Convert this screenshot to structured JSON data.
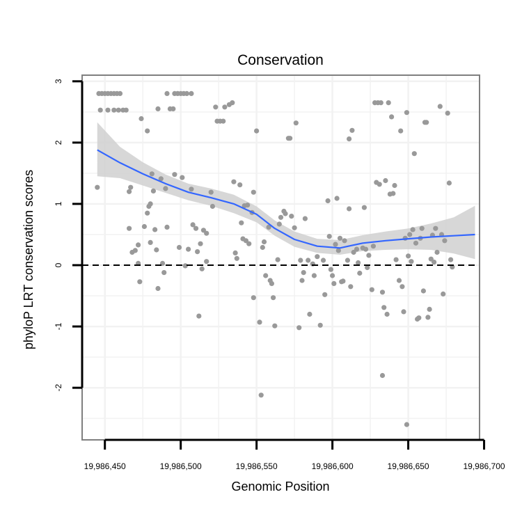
{
  "chart_data": {
    "type": "scatter",
    "title": "Conservation",
    "xlabel": "Genomic Position",
    "ylabel": "phyloP LRT conservation scores",
    "xlim": [
      19986435,
      19986697
    ],
    "ylim": [
      -2.85,
      3.1
    ],
    "x_ticks": [
      19986450,
      19986500,
      19986550,
      19986600,
      19986650,
      19986700
    ],
    "x_tick_labels": [
      "19,986,450",
      "19,986,500",
      "19,986,550",
      "19,986,600",
      "19,986,650",
      "19,986,700"
    ],
    "y_ticks": [
      -2,
      -1,
      0,
      1,
      2,
      3
    ],
    "y_tick_labels": [
      "-2",
      "-1",
      "0",
      "1",
      "2",
      "3"
    ],
    "grid": true,
    "reference_line": {
      "y": 0,
      "style": "dashed"
    },
    "colors": {
      "points": "#999999",
      "smooth": "#3366FF",
      "ribbon": "#D0D0D0",
      "panel_border": "#7F7F7F",
      "grid": "#F2F2F2"
    },
    "series": [
      {
        "name": "scores",
        "points": [
          [
            19986446,
            2.8
          ],
          [
            19986448,
            2.8
          ],
          [
            19986450,
            2.8
          ],
          [
            19986452,
            2.8
          ],
          [
            19986454,
            2.8
          ],
          [
            19986456,
            2.8
          ],
          [
            19986458,
            2.8
          ],
          [
            19986460,
            2.8
          ],
          [
            19986447,
            2.53
          ],
          [
            19986452,
            2.53
          ],
          [
            19986456,
            2.53
          ],
          [
            19986459,
            2.53
          ],
          [
            19986462,
            2.53
          ],
          [
            19986464,
            2.53
          ],
          [
            19986445,
            1.27
          ],
          [
            19986466,
            1.2
          ],
          [
            19986467,
            1.27
          ],
          [
            19986466,
            0.6
          ],
          [
            19986468,
            0.21
          ],
          [
            19986470,
            0.24
          ],
          [
            19986472,
            0.33
          ],
          [
            19986472,
            0.03
          ],
          [
            19986473,
            -0.27
          ],
          [
            19986474,
            2.39
          ],
          [
            19986478,
            2.19
          ],
          [
            19986476,
            0.63
          ],
          [
            19986478,
            0.85
          ],
          [
            19986479,
            0.96
          ],
          [
            19986480,
            1.0
          ],
          [
            19986481,
            1.49
          ],
          [
            19986482,
            1.21
          ],
          [
            19986483,
            0.58
          ],
          [
            19986484,
            0.25
          ],
          [
            19986485,
            -0.38
          ],
          [
            19986480,
            0.37
          ],
          [
            19986485,
            2.55
          ],
          [
            19986487,
            1.41
          ],
          [
            19986488,
            0.03
          ],
          [
            19986489,
            -0.12
          ],
          [
            19986490,
            1.25
          ],
          [
            19986491,
            0.62
          ],
          [
            19986491,
            2.8
          ],
          [
            19986493,
            2.55
          ],
          [
            19986495,
            2.55
          ],
          [
            19986496,
            2.8
          ],
          [
            19986498,
            2.8
          ],
          [
            19986500,
            2.8
          ],
          [
            19986502,
            2.8
          ],
          [
            19986504,
            2.8
          ],
          [
            19986507,
            2.8
          ],
          [
            19986496,
            1.48
          ],
          [
            19986499,
            0.29
          ],
          [
            19986501,
            1.43
          ],
          [
            19986503,
            -0.01
          ],
          [
            19986505,
            0.26
          ],
          [
            19986507,
            1.24
          ],
          [
            19986508,
            0.66
          ],
          [
            19986510,
            0.6
          ],
          [
            19986511,
            0.22
          ],
          [
            19986512,
            -0.83
          ],
          [
            19986513,
            0.35
          ],
          [
            19986514,
            -0.06
          ],
          [
            19986515,
            0.57
          ],
          [
            19986517,
            0.52
          ],
          [
            19986517,
            0.06
          ],
          [
            19986520,
            1.19
          ],
          [
            19986521,
            0.96
          ],
          [
            19986523,
            2.58
          ],
          [
            19986524,
            2.35
          ],
          [
            19986526,
            2.35
          ],
          [
            19986528,
            2.35
          ],
          [
            19986529,
            2.58
          ],
          [
            19986532,
            2.62
          ],
          [
            19986534,
            2.65
          ],
          [
            19986535,
            1.36
          ],
          [
            19986536,
            0.2
          ],
          [
            19986537,
            0.11
          ],
          [
            19986539,
            1.31
          ],
          [
            19986540,
            0.69
          ],
          [
            19986541,
            0.43
          ],
          [
            19986542,
            0.97
          ],
          [
            19986543,
            0.4
          ],
          [
            19986544,
            0.98
          ],
          [
            19986545,
            0.35
          ],
          [
            19986547,
            0.86
          ],
          [
            19986548,
            1.19
          ],
          [
            19986548,
            -0.53
          ],
          [
            19986550,
            2.19
          ],
          [
            19986552,
            -0.93
          ],
          [
            19986553,
            -2.12
          ],
          [
            19986554,
            0.29
          ],
          [
            19986555,
            0.38
          ],
          [
            19986556,
            -0.17
          ],
          [
            19986558,
            0.62
          ],
          [
            19986559,
            -0.25
          ],
          [
            19986560,
            -0.3
          ],
          [
            19986561,
            -0.53
          ],
          [
            19986562,
            -0.99
          ],
          [
            19986564,
            0.09
          ],
          [
            19986565,
            0.67
          ],
          [
            19986566,
            0.78
          ],
          [
            19986568,
            0.88
          ],
          [
            19986569,
            0.84
          ],
          [
            19986571,
            2.07
          ],
          [
            19986572,
            2.07
          ],
          [
            19986573,
            0.8
          ],
          [
            19986575,
            0.61
          ],
          [
            19986576,
            2.32
          ],
          [
            19986578,
            -1.02
          ],
          [
            19986579,
            0.08
          ],
          [
            19986580,
            -0.25
          ],
          [
            19986581,
            -0.12
          ],
          [
            19986582,
            0.76
          ],
          [
            19986584,
            0.08
          ],
          [
            19986585,
            -0.8
          ],
          [
            19986587,
            0.02
          ],
          [
            19986588,
            -0.17
          ],
          [
            19986590,
            0.14
          ],
          [
            19986592,
            -0.98
          ],
          [
            19986594,
            0.08
          ],
          [
            19986595,
            -0.48
          ],
          [
            19986597,
            1.05
          ],
          [
            19986598,
            0.47
          ],
          [
            19986599,
            -0.07
          ],
          [
            19986600,
            -0.17
          ],
          [
            19986601,
            -0.3
          ],
          [
            19986602,
            0.34
          ],
          [
            19986603,
            1.09
          ],
          [
            19986604,
            0.24
          ],
          [
            19986605,
            0.44
          ],
          [
            19986606,
            -0.27
          ],
          [
            19986607,
            -0.26
          ],
          [
            19986608,
            0.4
          ],
          [
            19986610,
            0.08
          ],
          [
            19986611,
            2.06
          ],
          [
            19986611,
            0.92
          ],
          [
            19986612,
            -0.35
          ],
          [
            19986613,
            2.2
          ],
          [
            19986614,
            0.21
          ],
          [
            19986616,
            0.26
          ],
          [
            19986617,
            0.04
          ],
          [
            19986618,
            -0.13
          ],
          [
            19986620,
            0.28
          ],
          [
            19986621,
            0.94
          ],
          [
            19986622,
            0.26
          ],
          [
            19986623,
            -0.04
          ],
          [
            19986624,
            0.16
          ],
          [
            19986626,
            -0.4
          ],
          [
            19986627,
            0.31
          ],
          [
            19986628,
            2.65
          ],
          [
            19986630,
            2.65
          ],
          [
            19986632,
            2.65
          ],
          [
            19986629,
            1.35
          ],
          [
            19986631,
            1.32
          ],
          [
            19986633,
            -1.8
          ],
          [
            19986633,
            -0.44
          ],
          [
            19986634,
            -0.69
          ],
          [
            19986635,
            1.38
          ],
          [
            19986636,
            -0.8
          ],
          [
            19986637,
            2.65
          ],
          [
            19986638,
            1.16
          ],
          [
            19986639,
            2.42
          ],
          [
            19986640,
            1.17
          ],
          [
            19986641,
            1.3
          ],
          [
            19986642,
            0.09
          ],
          [
            19986644,
            -0.25
          ],
          [
            19986645,
            2.19
          ],
          [
            19986646,
            -0.35
          ],
          [
            19986647,
            -0.76
          ],
          [
            19986648,
            0.44
          ],
          [
            19986649,
            2.49
          ],
          [
            19986649,
            -2.6
          ],
          [
            19986650,
            0.15
          ],
          [
            19986651,
            0.5
          ],
          [
            19986652,
            0.06
          ],
          [
            19986653,
            0.58
          ],
          [
            19986654,
            1.82
          ],
          [
            19986655,
            0.36
          ],
          [
            19986656,
            -0.88
          ],
          [
            19986657,
            -0.86
          ],
          [
            19986658,
            0.44
          ],
          [
            19986659,
            0.6
          ],
          [
            19986660,
            -0.42
          ],
          [
            19986661,
            2.33
          ],
          [
            19986662,
            2.33
          ],
          [
            19986663,
            -0.85
          ],
          [
            19986664,
            -0.72
          ],
          [
            19986665,
            0.1
          ],
          [
            19986666,
            0.49
          ],
          [
            19986667,
            0.05
          ],
          [
            19986668,
            0.6
          ],
          [
            19986669,
            0.21
          ],
          [
            19986671,
            2.59
          ],
          [
            19986672,
            0.5
          ],
          [
            19986673,
            -0.47
          ],
          [
            19986674,
            0.4
          ],
          [
            19986676,
            2.48
          ],
          [
            19986677,
            1.34
          ],
          [
            19986678,
            0.09
          ],
          [
            19986679,
            -0.03
          ]
        ],
        "smooth": [
          [
            19986445,
            1.88,
            1.45,
            2.33
          ],
          [
            19986460,
            1.67,
            1.42,
            1.93
          ],
          [
            19986475,
            1.49,
            1.3,
            1.68
          ],
          [
            19986490,
            1.33,
            1.18,
            1.48
          ],
          [
            19986505,
            1.19,
            1.06,
            1.33
          ],
          [
            19986520,
            1.1,
            0.97,
            1.25
          ],
          [
            19986535,
            1.0,
            0.85,
            1.15
          ],
          [
            19986550,
            0.83,
            0.7,
            0.96
          ],
          [
            19986562,
            0.6,
            0.48,
            0.73
          ],
          [
            19986575,
            0.42,
            0.3,
            0.55
          ],
          [
            19986590,
            0.31,
            0.2,
            0.43
          ],
          [
            19986605,
            0.28,
            0.17,
            0.41
          ],
          [
            19986620,
            0.36,
            0.23,
            0.49
          ],
          [
            19986635,
            0.4,
            0.25,
            0.55
          ],
          [
            19986650,
            0.43,
            0.26,
            0.6
          ],
          [
            19986665,
            0.46,
            0.25,
            0.68
          ],
          [
            19986680,
            0.48,
            0.19,
            0.78
          ],
          [
            19986694,
            0.5,
            0.1,
            0.97
          ]
        ]
      }
    ]
  }
}
